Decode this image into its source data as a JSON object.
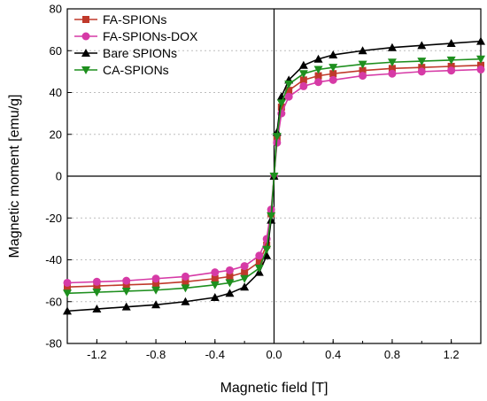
{
  "chart_data": {
    "type": "scatter",
    "xlabel": "Magnetic field [T]",
    "ylabel": "Magnetic moment [emu/g]",
    "xlim": [
      -1.4,
      1.4
    ],
    "ylim": [
      -80,
      80
    ],
    "x_ticks": [
      -1.2,
      -0.8,
      -0.4,
      0.0,
      0.4,
      0.8,
      1.2
    ],
    "x_tick_labels": [
      "-1.2",
      "-0.8",
      "-0.4",
      "0.0",
      "0.4",
      "0.8",
      "1.2"
    ],
    "y_ticks": [
      -80,
      -60,
      -40,
      -20,
      0,
      20,
      40,
      60,
      80
    ],
    "y_tick_labels": [
      "-80",
      "-60",
      "-40",
      "-20",
      "0",
      "20",
      "40",
      "60",
      "80"
    ],
    "grid": true,
    "legend_position": "top-left",
    "series": [
      {
        "name": "FA-SPIONs",
        "color": "#c0392b",
        "marker": "square",
        "x": [
          -1.4,
          -1.2,
          -1.0,
          -0.8,
          -0.6,
          -0.4,
          -0.3,
          -0.2,
          -0.1,
          -0.05,
          -0.02,
          0.0,
          0.02,
          0.05,
          0.1,
          0.2,
          0.3,
          0.4,
          0.6,
          0.8,
          1.0,
          1.2,
          1.4
        ],
        "y": [
          -53,
          -52.5,
          -52,
          -51.5,
          -50.5,
          -49,
          -48,
          -46,
          -41,
          -33,
          -18,
          0,
          18,
          33,
          41,
          46,
          48,
          49,
          50.5,
          51.5,
          52,
          52.5,
          53
        ]
      },
      {
        "name": "FA-SPIONs-DOX",
        "color": "#d63aa6",
        "marker": "circle",
        "x": [
          -1.4,
          -1.2,
          -1.0,
          -0.8,
          -0.6,
          -0.4,
          -0.3,
          -0.2,
          -0.1,
          -0.05,
          -0.02,
          0.0,
          0.02,
          0.05,
          0.1,
          0.2,
          0.3,
          0.4,
          0.6,
          0.8,
          1.0,
          1.2,
          1.4
        ],
        "y": [
          -51,
          -50.5,
          -50,
          -49,
          -48,
          -46,
          -45,
          -43,
          -38,
          -30,
          -16,
          0,
          16,
          30,
          38,
          43,
          45,
          46,
          48,
          49,
          50,
          50.5,
          51
        ]
      },
      {
        "name": "Bare SPIONs",
        "color": "#000000",
        "marker": "triangle-up",
        "x": [
          -1.4,
          -1.2,
          -1.0,
          -0.8,
          -0.6,
          -0.4,
          -0.3,
          -0.2,
          -0.1,
          -0.05,
          -0.02,
          0.0,
          0.02,
          0.05,
          0.1,
          0.2,
          0.3,
          0.4,
          0.6,
          0.8,
          1.0,
          1.2,
          1.4
        ],
        "y": [
          -64.5,
          -63.5,
          -62.5,
          -61.5,
          -60,
          -58,
          -56,
          -53,
          -46,
          -38,
          -21,
          0,
          21,
          38,
          46,
          53,
          56,
          58,
          60,
          61.5,
          62.5,
          63.5,
          64.5
        ]
      },
      {
        "name": "CA-SPIONs",
        "color": "#1e8f1e",
        "marker": "triangle-down",
        "x": [
          -1.4,
          -1.2,
          -1.0,
          -0.8,
          -0.6,
          -0.4,
          -0.3,
          -0.2,
          -0.1,
          -0.05,
          -0.02,
          0.0,
          0.02,
          0.05,
          0.1,
          0.2,
          0.3,
          0.4,
          0.6,
          0.8,
          1.0,
          1.2,
          1.4
        ],
        "y": [
          -56,
          -55.5,
          -55,
          -54.5,
          -53.5,
          -52,
          -51,
          -49,
          -44,
          -35,
          -19,
          0,
          19,
          35,
          44,
          49,
          51,
          52,
          53.5,
          54.5,
          55,
          55.5,
          56
        ]
      }
    ]
  }
}
